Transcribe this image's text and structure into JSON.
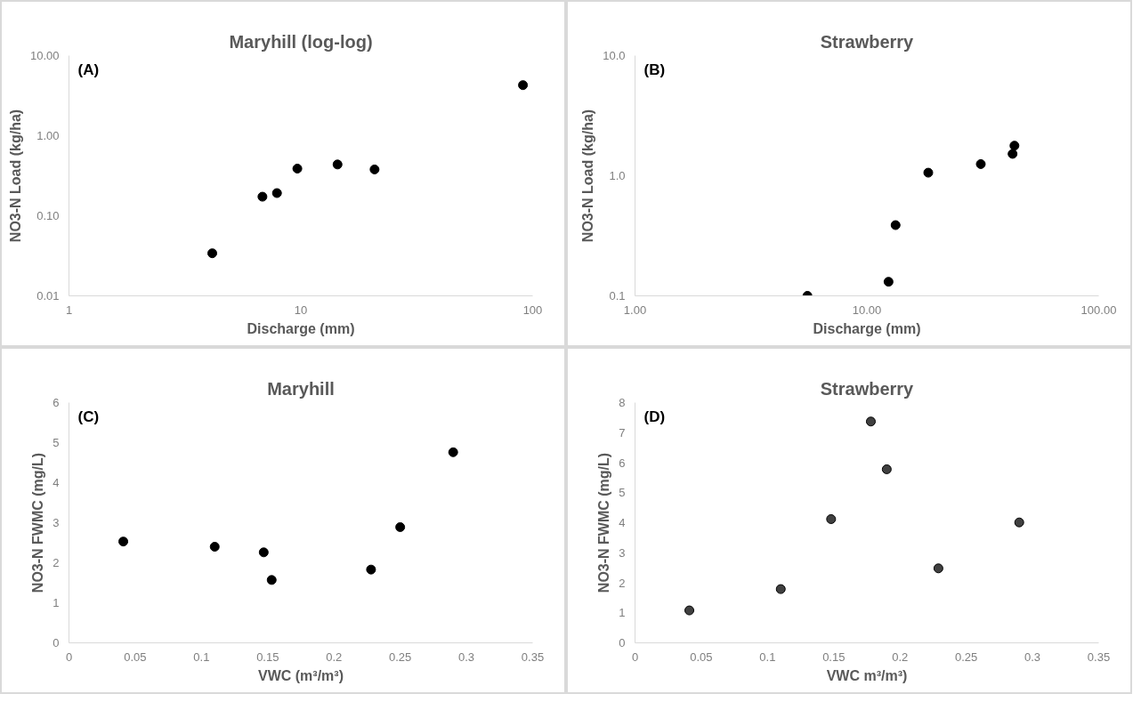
{
  "chart_data": [
    {
      "type": "scatter",
      "title": "Maryhill (log-log)",
      "annotations": [
        "(A)"
      ],
      "xlabel": "Discharge (mm)",
      "ylabel": "NO3-N Load (kg/ha)",
      "log": "xy",
      "marker": "circle",
      "grid": false,
      "x": [
        4.15,
        6.83,
        7.89,
        9.66,
        14.4,
        20.8,
        90.8
      ],
      "series": [
        {
          "color": "#000000",
          "values": [
            0.034,
            0.173,
            0.192,
            0.388,
            0.437,
            0.379,
            4.28
          ]
        }
      ],
      "xlim": [
        1,
        100
      ],
      "xticks": [
        1,
        10,
        100
      ],
      "ylim": [
        0.01,
        10
      ],
      "yticks": [
        {
          "value": 0.01,
          "label": "0.01"
        },
        {
          "value": 0.1,
          "label": "0.10"
        },
        {
          "value": 1,
          "label": "1.00"
        },
        {
          "value": 10,
          "label": "10.00"
        }
      ]
    },
    {
      "type": "scatter",
      "title": "Strawberry",
      "annotations": [
        "(B)"
      ],
      "xlabel": "Discharge (mm)",
      "ylabel": "NO3-N Load (kg/ha)",
      "log": "xy",
      "marker": "circle",
      "grid": false,
      "x": [
        5.54,
        12.4,
        13.3,
        18.4,
        31.0,
        42.5,
        43.3
      ],
      "series": [
        {
          "color": "#000000",
          "values": [
            0.1,
            0.131,
            0.388,
            1.06,
            1.25,
            1.52,
            1.78
          ]
        }
      ],
      "xlim": [
        1,
        100
      ],
      "xticks": [
        {
          "value": 1,
          "label": "1.00"
        },
        {
          "value": 10,
          "label": "10.00"
        },
        {
          "value": 100,
          "label": "100.00"
        }
      ],
      "ylim": [
        0.1,
        10
      ],
      "yticks": [
        0.1,
        {
          "value": 1,
          "label": "1.0"
        },
        {
          "value": 10,
          "label": "10.0"
        }
      ]
    },
    {
      "type": "scatter",
      "title": "Maryhill",
      "annotations": [
        "(C)"
      ],
      "xlabel": "VWC (m³/m³)",
      "ylabel": "NO3-N FWMC (mg/L)",
      "marker": "circle",
      "grid": false,
      "x": [
        0.041,
        0.11,
        0.147,
        0.153,
        0.228,
        0.25,
        0.29
      ],
      "series": [
        {
          "color": "#000000",
          "values": [
            2.53,
            2.4,
            2.26,
            1.57,
            1.83,
            2.89,
            4.76
          ]
        }
      ],
      "xlim": [
        0,
        0.35
      ],
      "xticks": [
        0,
        0.05,
        0.1,
        0.15,
        0.2,
        0.25,
        0.3,
        0.35
      ],
      "ylim": [
        0,
        6
      ],
      "yticks": [
        0,
        1,
        2,
        3,
        4,
        5,
        6
      ]
    },
    {
      "type": "scatter",
      "title": "Strawberry",
      "annotations": [
        "(D)"
      ],
      "xlabel": "VWC m³/m³)",
      "ylabel": "NO3-N FWMC (mg/L)",
      "marker": "circle",
      "grid": false,
      "x": [
        0.041,
        0.11,
        0.148,
        0.178,
        0.19,
        0.229,
        0.29
      ],
      "series": [
        {
          "color": "#404040",
          "values": [
            1.08,
            1.79,
            4.12,
            7.37,
            5.78,
            2.48,
            4.01
          ]
        }
      ],
      "xlim": [
        0,
        0.35
      ],
      "xticks": [
        0,
        0.05,
        0.1,
        0.15,
        0.2,
        0.25,
        0.3,
        0.35
      ],
      "ylim": [
        0,
        8
      ],
      "yticks": [
        0,
        1,
        2,
        3,
        4,
        5,
        6,
        7,
        8
      ]
    }
  ]
}
